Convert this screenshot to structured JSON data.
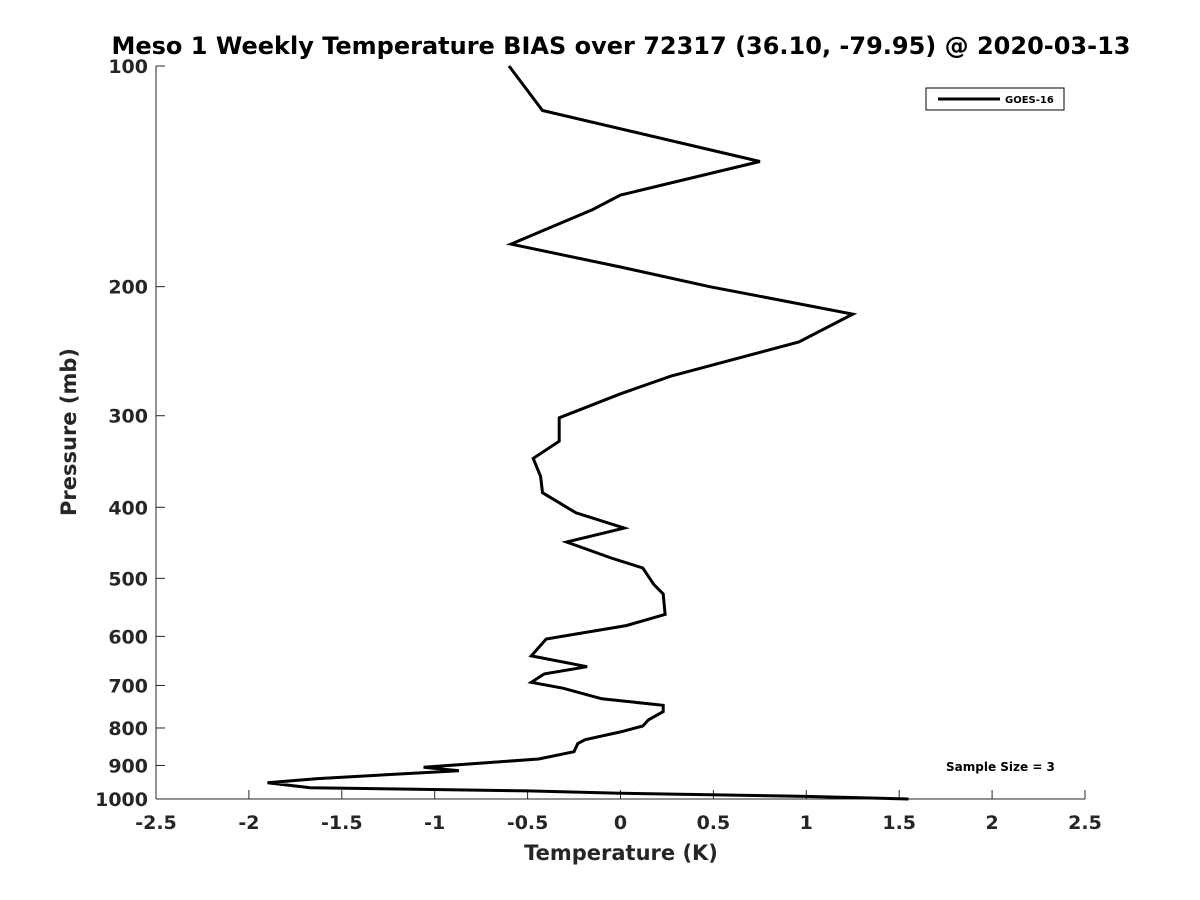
{
  "chart_data": {
    "type": "line",
    "title": "Meso 1 Weekly Temperature BIAS over 72317 (36.10, -79.95) @ 2020-03-13",
    "xlabel": "Temperature (K)",
    "ylabel": "Pressure (mb)",
    "xlim": [
      -2.5,
      2.5
    ],
    "ylim": [
      100,
      1000
    ],
    "y_scale": "log",
    "y_direction": "reversed",
    "x_ticks": [
      -2.5,
      -2,
      -1.5,
      -1,
      -0.5,
      0,
      0.5,
      1,
      1.5,
      2,
      2.5
    ],
    "x_tick_labels": [
      "-2.5",
      "-2",
      "-1.5",
      "-1",
      "-0.5",
      "0",
      "0.5",
      "1",
      "1.5",
      "2",
      "2.5"
    ],
    "y_ticks": [
      100,
      200,
      300,
      400,
      500,
      600,
      700,
      800,
      900,
      1000
    ],
    "y_tick_labels": [
      "100",
      "200",
      "300",
      "400",
      "500",
      "600",
      "700",
      "800",
      "900",
      "1000"
    ],
    "grid": false,
    "legend_position": "top-right",
    "annotation": "Sample Size = 3",
    "series": [
      {
        "name": "GOES-16",
        "color": "#000000",
        "points": [
          {
            "x": -0.6,
            "p": 100
          },
          {
            "x": -0.42,
            "p": 115
          },
          {
            "x": 0.75,
            "p": 135
          },
          {
            "x": 0.0,
            "p": 150
          },
          {
            "x": -0.15,
            "p": 157
          },
          {
            "x": -0.59,
            "p": 175
          },
          {
            "x": 0.0,
            "p": 188
          },
          {
            "x": 0.48,
            "p": 200
          },
          {
            "x": 1.25,
            "p": 218
          },
          {
            "x": 0.96,
            "p": 238
          },
          {
            "x": 0.27,
            "p": 265
          },
          {
            "x": 0.0,
            "p": 280
          },
          {
            "x": -0.33,
            "p": 302
          },
          {
            "x": -0.33,
            "p": 325
          },
          {
            "x": -0.47,
            "p": 343
          },
          {
            "x": -0.43,
            "p": 363
          },
          {
            "x": -0.42,
            "p": 382
          },
          {
            "x": -0.24,
            "p": 407
          },
          {
            "x": 0.02,
            "p": 427
          },
          {
            "x": -0.29,
            "p": 446
          },
          {
            "x": -0.05,
            "p": 469
          },
          {
            "x": 0.12,
            "p": 484
          },
          {
            "x": 0.18,
            "p": 510
          },
          {
            "x": 0.23,
            "p": 525
          },
          {
            "x": 0.24,
            "p": 560
          },
          {
            "x": 0.03,
            "p": 580
          },
          {
            "x": -0.4,
            "p": 605
          },
          {
            "x": -0.48,
            "p": 638
          },
          {
            "x": -0.18,
            "p": 660
          },
          {
            "x": -0.41,
            "p": 675
          },
          {
            "x": -0.48,
            "p": 693
          },
          {
            "x": -0.31,
            "p": 706
          },
          {
            "x": -0.1,
            "p": 730
          },
          {
            "x": 0.23,
            "p": 745
          },
          {
            "x": 0.23,
            "p": 760
          },
          {
            "x": 0.15,
            "p": 780
          },
          {
            "x": 0.12,
            "p": 795
          },
          {
            "x": 0.0,
            "p": 810
          },
          {
            "x": -0.19,
            "p": 830
          },
          {
            "x": -0.23,
            "p": 840
          },
          {
            "x": -0.25,
            "p": 862
          },
          {
            "x": -0.44,
            "p": 882
          },
          {
            "x": -1.06,
            "p": 905
          },
          {
            "x": -0.87,
            "p": 915
          },
          {
            "x": -1.63,
            "p": 938
          },
          {
            "x": -1.9,
            "p": 950
          },
          {
            "x": -1.67,
            "p": 965
          },
          {
            "x": -0.5,
            "p": 975
          },
          {
            "x": 0.0,
            "p": 982
          },
          {
            "x": 1.0,
            "p": 992
          },
          {
            "x": 1.55,
            "p": 1000
          }
        ]
      }
    ]
  }
}
